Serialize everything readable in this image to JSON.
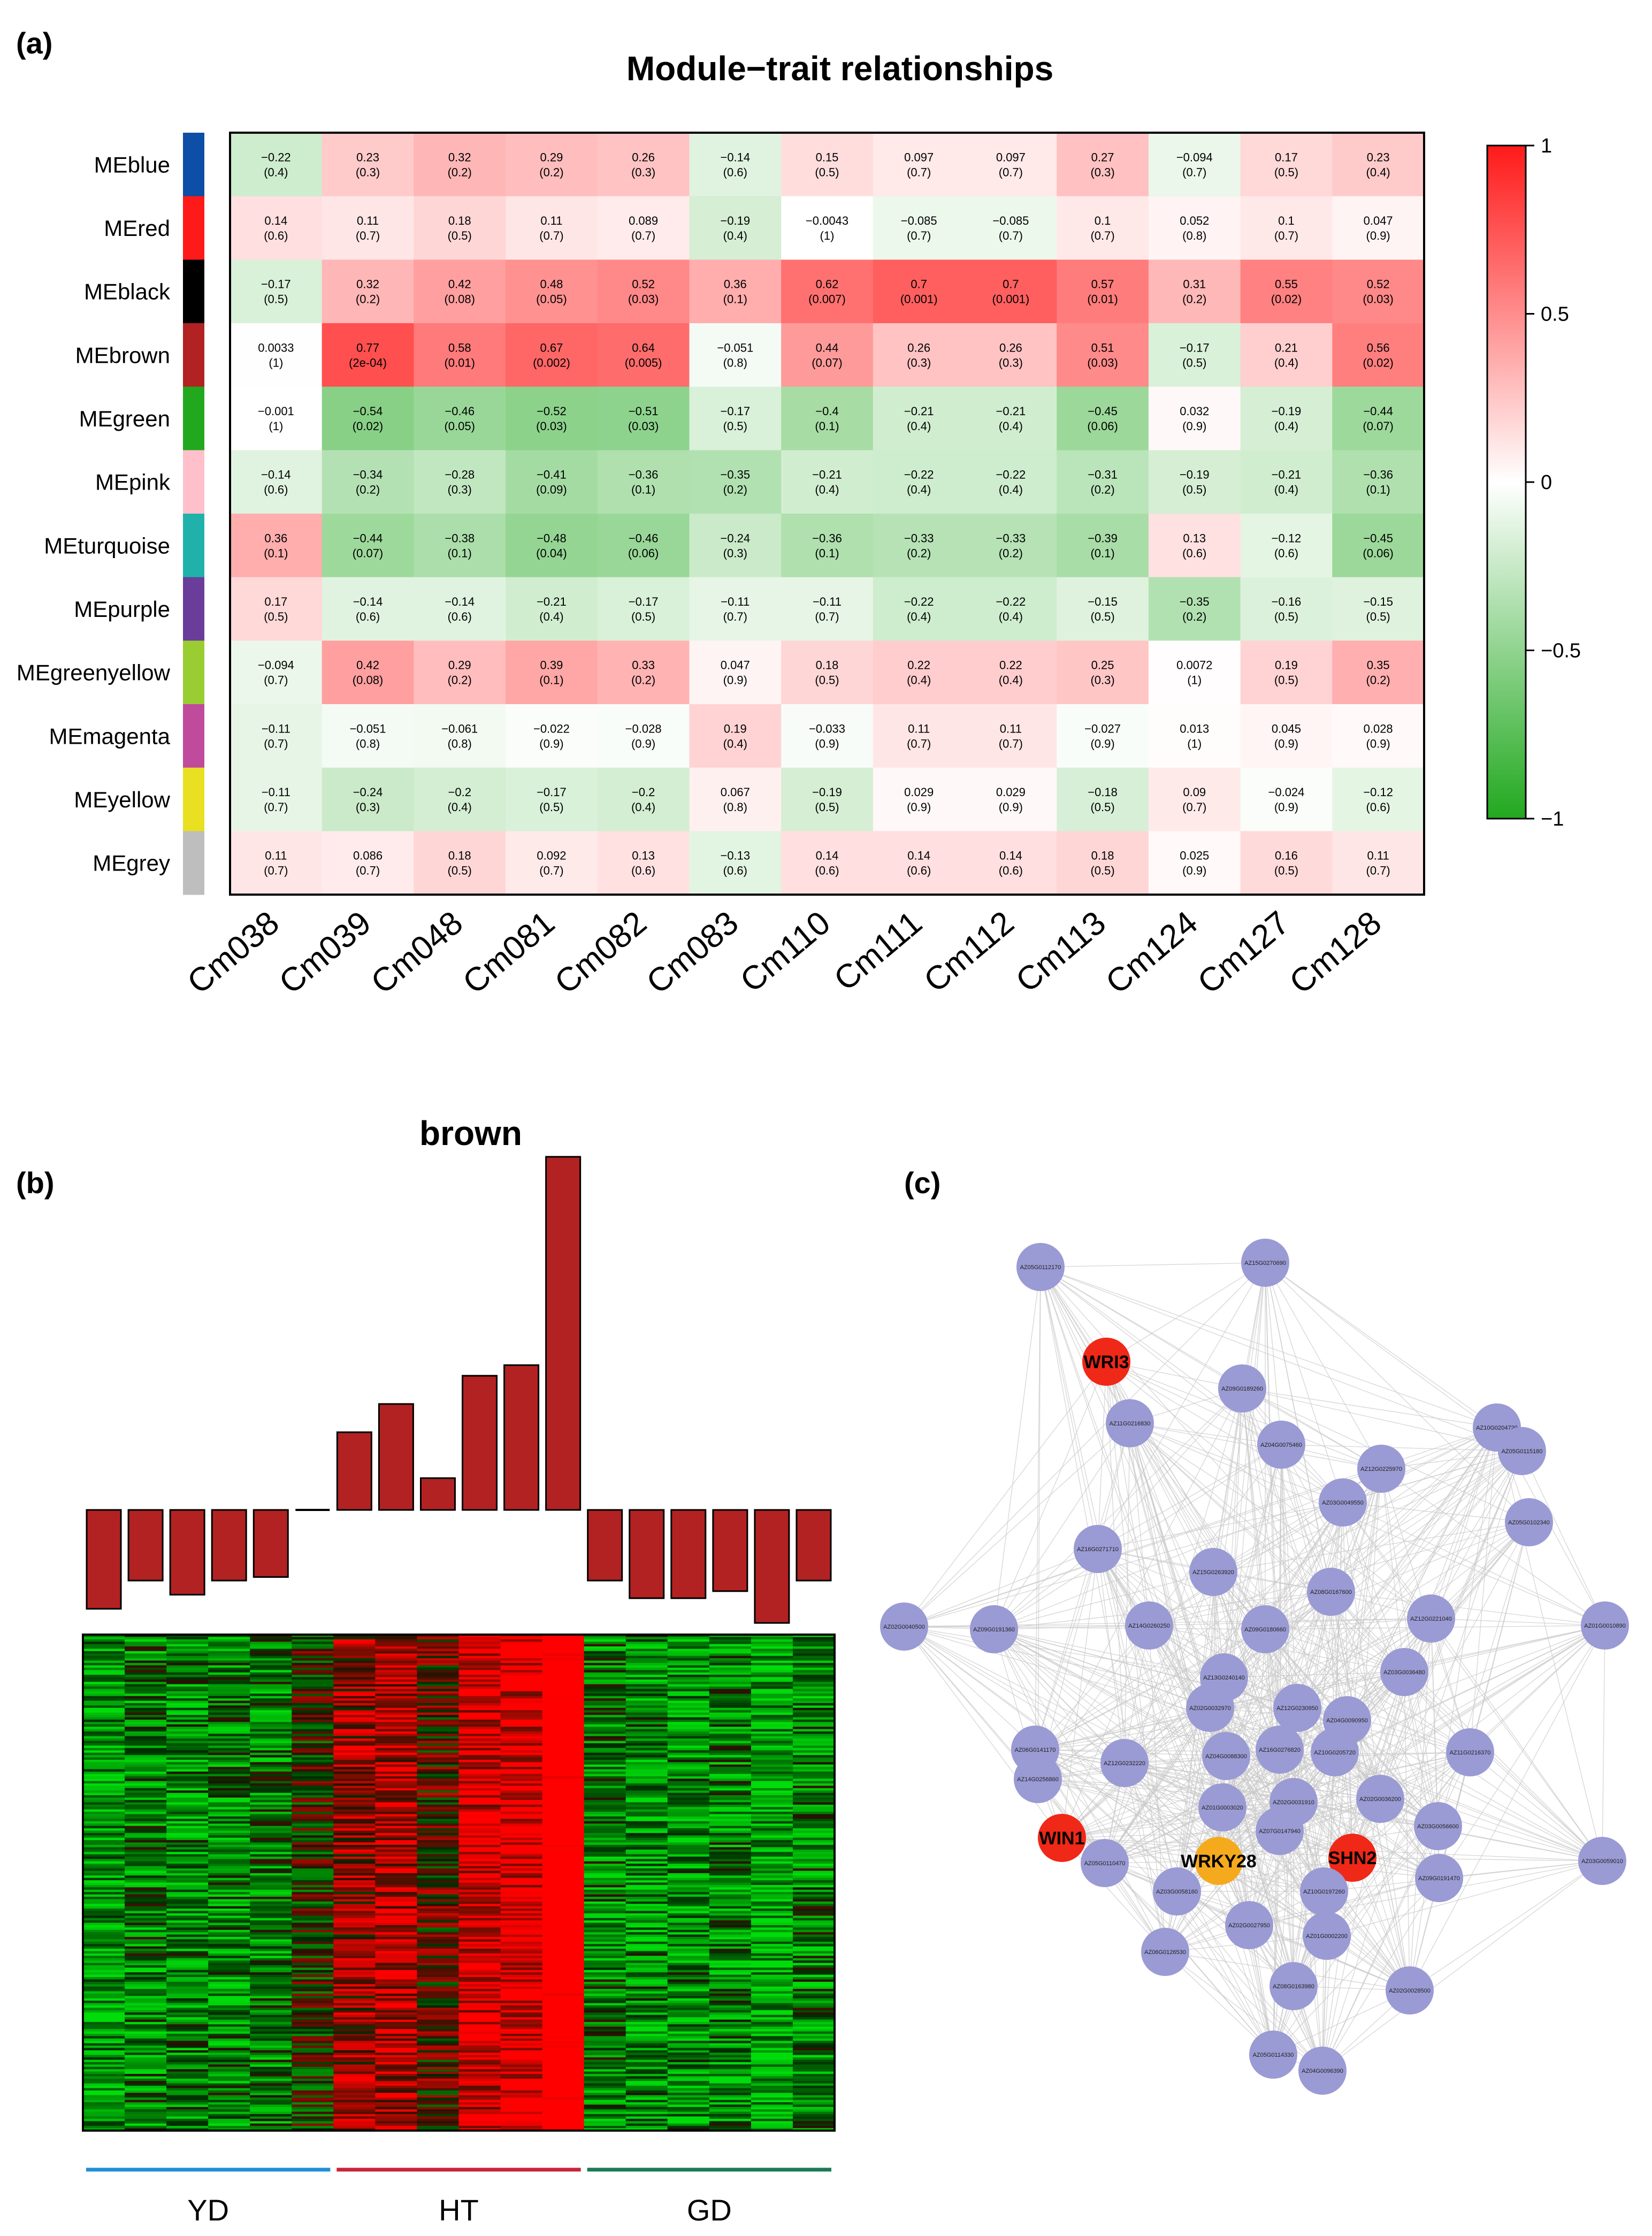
{
  "panel_labels": [
    "(a)",
    "(b)",
    "(c)"
  ],
  "chart_data": [
    {
      "type": "heatmap",
      "title": "Module−trait relationships",
      "rows": [
        "MEblue",
        "MEred",
        "MEblack",
        "MEbrown",
        "MEgreen",
        "MEpink",
        "MEturquoise",
        "MEpurple",
        "MEgreenyellow",
        "MEmagenta",
        "MEyellow",
        "MEgrey"
      ],
      "row_colors": [
        "#0d4ea6",
        "#ff1a1a",
        "#000000",
        "#b22222",
        "#22a81f",
        "#ffc0cb",
        "#20b2aa",
        "#6a3d9a",
        "#9acd32",
        "#c04b9c",
        "#e8e020",
        "#bebebe"
      ],
      "columns": [
        "Cm038",
        "Cm039",
        "Cm048",
        "Cm081",
        "Cm082",
        "Cm083",
        "Cm110",
        "Cm111",
        "Cm112",
        "Cm113",
        "Cm124",
        "Cm127",
        "Cm128"
      ],
      "values": [
        [
          -0.22,
          0.23,
          0.32,
          0.29,
          0.26,
          -0.14,
          0.15,
          0.097,
          0.097,
          0.27,
          -0.094,
          0.17,
          0.23
        ],
        [
          0.14,
          0.11,
          0.18,
          0.11,
          0.089,
          -0.19,
          -0.0043,
          -0.085,
          -0.085,
          0.1,
          0.052,
          0.1,
          0.047
        ],
        [
          -0.17,
          0.32,
          0.42,
          0.48,
          0.52,
          0.36,
          0.62,
          0.7,
          0.7,
          0.57,
          0.31,
          0.55,
          0.52
        ],
        [
          0.0033,
          0.77,
          0.58,
          0.67,
          0.64,
          -0.051,
          0.44,
          0.26,
          0.26,
          0.51,
          -0.17,
          0.21,
          0.56
        ],
        [
          -0.001,
          -0.54,
          -0.46,
          -0.52,
          -0.51,
          -0.17,
          -0.4,
          -0.21,
          -0.21,
          -0.45,
          0.032,
          -0.19,
          -0.44
        ],
        [
          -0.14,
          -0.34,
          -0.28,
          -0.41,
          -0.36,
          -0.35,
          -0.21,
          -0.22,
          -0.22,
          -0.31,
          -0.19,
          -0.21,
          -0.36
        ],
        [
          0.36,
          -0.44,
          -0.38,
          -0.48,
          -0.46,
          -0.24,
          -0.36,
          -0.33,
          -0.33,
          -0.39,
          0.13,
          -0.12,
          -0.45
        ],
        [
          0.17,
          -0.14,
          -0.14,
          -0.21,
          -0.17,
          -0.11,
          -0.11,
          -0.22,
          -0.22,
          -0.15,
          -0.35,
          -0.16,
          -0.15
        ],
        [
          -0.094,
          0.42,
          0.29,
          0.39,
          0.33,
          0.047,
          0.18,
          0.22,
          0.22,
          0.25,
          0.0072,
          0.19,
          0.35
        ],
        [
          -0.11,
          -0.051,
          -0.061,
          -0.022,
          -0.028,
          0.19,
          -0.033,
          0.11,
          0.11,
          -0.027,
          0.013,
          0.045,
          0.028
        ],
        [
          -0.11,
          -0.24,
          -0.2,
          -0.17,
          -0.2,
          0.067,
          -0.19,
          0.029,
          0.029,
          -0.18,
          0.09,
          -0.024,
          -0.12
        ],
        [
          0.11,
          0.086,
          0.18,
          0.092,
          0.13,
          -0.13,
          0.14,
          0.14,
          0.14,
          0.18,
          0.025,
          0.16,
          0.11
        ]
      ],
      "pvalues": [
        [
          "(0.4)",
          "(0.3)",
          "(0.2)",
          "(0.2)",
          "(0.3)",
          "(0.6)",
          "(0.5)",
          "(0.7)",
          "(0.7)",
          "(0.3)",
          "(0.7)",
          "(0.5)",
          "(0.4)"
        ],
        [
          "(0.6)",
          "(0.7)",
          "(0.5)",
          "(0.7)",
          "(0.7)",
          "(0.4)",
          "(1)",
          "(0.7)",
          "(0.7)",
          "(0.7)",
          "(0.8)",
          "(0.7)",
          "(0.9)"
        ],
        [
          "(0.5)",
          "(0.2)",
          "(0.08)",
          "(0.05)",
          "(0.03)",
          "(0.1)",
          "(0.007)",
          "(0.001)",
          "(0.001)",
          "(0.01)",
          "(0.2)",
          "(0.02)",
          "(0.03)"
        ],
        [
          "(1)",
          "(2e-04)",
          "(0.01)",
          "(0.002)",
          "(0.005)",
          "(0.8)",
          "(0.07)",
          "(0.3)",
          "(0.3)",
          "(0.03)",
          "(0.5)",
          "(0.4)",
          "(0.02)"
        ],
        [
          "(1)",
          "(0.02)",
          "(0.05)",
          "(0.03)",
          "(0.03)",
          "(0.5)",
          "(0.1)",
          "(0.4)",
          "(0.4)",
          "(0.06)",
          "(0.9)",
          "(0.4)",
          "(0.07)"
        ],
        [
          "(0.6)",
          "(0.2)",
          "(0.3)",
          "(0.09)",
          "(0.1)",
          "(0.2)",
          "(0.4)",
          "(0.4)",
          "(0.4)",
          "(0.2)",
          "(0.5)",
          "(0.4)",
          "(0.1)"
        ],
        [
          "(0.1)",
          "(0.07)",
          "(0.1)",
          "(0.04)",
          "(0.06)",
          "(0.3)",
          "(0.1)",
          "(0.2)",
          "(0.2)",
          "(0.1)",
          "(0.6)",
          "(0.6)",
          "(0.06)"
        ],
        [
          "(0.5)",
          "(0.6)",
          "(0.6)",
          "(0.4)",
          "(0.5)",
          "(0.7)",
          "(0.7)",
          "(0.4)",
          "(0.4)",
          "(0.5)",
          "(0.2)",
          "(0.5)",
          "(0.5)"
        ],
        [
          "(0.7)",
          "(0.08)",
          "(0.2)",
          "(0.1)",
          "(0.2)",
          "(0.9)",
          "(0.5)",
          "(0.4)",
          "(0.4)",
          "(0.3)",
          "(1)",
          "(0.5)",
          "(0.2)"
        ],
        [
          "(0.7)",
          "(0.8)",
          "(0.8)",
          "(0.9)",
          "(0.9)",
          "(0.4)",
          "(0.9)",
          "(0.7)",
          "(0.7)",
          "(0.9)",
          "(1)",
          "(0.9)",
          "(0.9)"
        ],
        [
          "(0.7)",
          "(0.3)",
          "(0.4)",
          "(0.5)",
          "(0.4)",
          "(0.8)",
          "(0.5)",
          "(0.9)",
          "(0.9)",
          "(0.5)",
          "(0.7)",
          "(0.9)",
          "(0.6)"
        ],
        [
          "(0.7)",
          "(0.7)",
          "(0.5)",
          "(0.7)",
          "(0.6)",
          "(0.6)",
          "(0.6)",
          "(0.6)",
          "(0.6)",
          "(0.5)",
          "(0.9)",
          "(0.5)",
          "(0.7)"
        ]
      ],
      "value_labels": [
        [
          "−0.22",
          "0.23",
          "0.32",
          "0.29",
          "0.26",
          "−0.14",
          "0.15",
          "0.097",
          "0.097",
          "0.27",
          "−0.094",
          "0.17",
          "0.23"
        ],
        [
          "0.14",
          "0.11",
          "0.18",
          "0.11",
          "0.089",
          "−0.19",
          "−0.0043",
          "−0.085",
          "−0.085",
          "0.1",
          "0.052",
          "0.1",
          "0.047"
        ],
        [
          "−0.17",
          "0.32",
          "0.42",
          "0.48",
          "0.52",
          "0.36",
          "0.62",
          "0.7",
          "0.7",
          "0.57",
          "0.31",
          "0.55",
          "0.52"
        ],
        [
          "0.0033",
          "0.77",
          "0.58",
          "0.67",
          "0.64",
          "−0.051",
          "0.44",
          "0.26",
          "0.26",
          "0.51",
          "−0.17",
          "0.21",
          "0.56"
        ],
        [
          "−0.001",
          "−0.54",
          "−0.46",
          "−0.52",
          "−0.51",
          "−0.17",
          "−0.4",
          "−0.21",
          "−0.21",
          "−0.45",
          "0.032",
          "−0.19",
          "−0.44"
        ],
        [
          "−0.14",
          "−0.34",
          "−0.28",
          "−0.41",
          "−0.36",
          "−0.35",
          "−0.21",
          "−0.22",
          "−0.22",
          "−0.31",
          "−0.19",
          "−0.21",
          "−0.36"
        ],
        [
          "0.36",
          "−0.44",
          "−0.38",
          "−0.48",
          "−0.46",
          "−0.24",
          "−0.36",
          "−0.33",
          "−0.33",
          "−0.39",
          "0.13",
          "−0.12",
          "−0.45"
        ],
        [
          "0.17",
          "−0.14",
          "−0.14",
          "−0.21",
          "−0.17",
          "−0.11",
          "−0.11",
          "−0.22",
          "−0.22",
          "−0.15",
          "−0.35",
          "−0.16",
          "−0.15"
        ],
        [
          "−0.094",
          "0.42",
          "0.29",
          "0.39",
          "0.33",
          "0.047",
          "0.18",
          "0.22",
          "0.22",
          "0.25",
          "0.0072",
          "0.19",
          "0.35"
        ],
        [
          "−0.11",
          "−0.051",
          "−0.061",
          "−0.022",
          "−0.028",
          "0.19",
          "−0.033",
          "0.11",
          "0.11",
          "−0.027",
          "0.013",
          "0.045",
          "0.028"
        ],
        [
          "−0.11",
          "−0.24",
          "−0.2",
          "−0.17",
          "−0.2",
          "0.067",
          "−0.19",
          "0.029",
          "0.029",
          "−0.18",
          "0.09",
          "−0.024",
          "−0.12"
        ],
        [
          "0.11",
          "0.086",
          "0.18",
          "0.092",
          "0.13",
          "−0.13",
          "0.14",
          "0.14",
          "0.14",
          "0.18",
          "0.025",
          "0.16",
          "0.11"
        ]
      ],
      "colorbar": {
        "range": [
          -1,
          1
        ],
        "ticks": [
          "1",
          "0.5",
          "0",
          "−0.5",
          "−1"
        ],
        "low_color": "#22a81f",
        "mid_color": "#ffffff",
        "high_color": "#ff1a1a"
      }
    },
    {
      "type": "bar",
      "title": "brown",
      "values": [
        -0.28,
        -0.2,
        -0.24,
        -0.2,
        -0.19,
        0.0,
        0.22,
        0.3,
        0.09,
        0.38,
        0.41,
        1.0,
        -0.2,
        -0.25,
        -0.25,
        -0.23,
        -0.32,
        -0.2
      ],
      "bar_color": "#b22222",
      "heatmap_groups": [
        "YD",
        "HT",
        "GD"
      ],
      "group_colors": [
        "#1e90d6",
        "#c8243c",
        "#1a7a55"
      ],
      "samples_per_group": 6
    },
    {
      "type": "network",
      "nodes": [
        {
          "id": "AZ05G0112170",
          "kind": "gene"
        },
        {
          "id": "AZ15G0270690",
          "kind": "gene"
        },
        {
          "id": "WRI3",
          "kind": "highlight-red"
        },
        {
          "id": "AZ09G0189260",
          "kind": "gene"
        },
        {
          "id": "AZ11G0216830",
          "kind": "gene"
        },
        {
          "id": "AZ04G0075460",
          "kind": "gene"
        },
        {
          "id": "AZ10G0204720",
          "kind": "gene"
        },
        {
          "id": "AZ05G0115180",
          "kind": "gene"
        },
        {
          "id": "AZ12G0225970",
          "kind": "gene"
        },
        {
          "id": "AZ03G0049550",
          "kind": "gene"
        },
        {
          "id": "AZ05G0102340",
          "kind": "gene"
        },
        {
          "id": "AZ16G0271710",
          "kind": "gene"
        },
        {
          "id": "AZ15G0263920",
          "kind": "gene"
        },
        {
          "id": "AZ08G0167600",
          "kind": "gene"
        },
        {
          "id": "AZ02G0040500",
          "kind": "gene"
        },
        {
          "id": "AZ09G0191360",
          "kind": "gene"
        },
        {
          "id": "AZ14G0260250",
          "kind": "gene"
        },
        {
          "id": "AZ09G0180660",
          "kind": "gene"
        },
        {
          "id": "AZ12G0221040",
          "kind": "gene"
        },
        {
          "id": "AZ01G0010890",
          "kind": "gene"
        },
        {
          "id": "AZ13G0240140",
          "kind": "gene"
        },
        {
          "id": "AZ03G0036480",
          "kind": "gene"
        },
        {
          "id": "AZ02G0032970",
          "kind": "gene"
        },
        {
          "id": "AZ12G0230950",
          "kind": "gene"
        },
        {
          "id": "AZ04G0090950",
          "kind": "gene"
        },
        {
          "id": "AZ06G0141170",
          "kind": "gene"
        },
        {
          "id": "AZ12G0232220",
          "kind": "gene"
        },
        {
          "id": "AZ04G0088300",
          "kind": "gene"
        },
        {
          "id": "AZ16G0276820",
          "kind": "gene"
        },
        {
          "id": "AZ10G0205720",
          "kind": "gene"
        },
        {
          "id": "AZ11G0216370",
          "kind": "gene"
        },
        {
          "id": "AZ14G0256860",
          "kind": "gene"
        },
        {
          "id": "AZ01G0003020",
          "kind": "gene"
        },
        {
          "id": "AZ02G0031910",
          "kind": "gene"
        },
        {
          "id": "AZ02G0036200",
          "kind": "gene"
        },
        {
          "id": "WIN1",
          "kind": "highlight-red"
        },
        {
          "id": "AZ07G0147940",
          "kind": "gene"
        },
        {
          "id": "AZ03G0056600",
          "kind": "gene"
        },
        {
          "id": "WRKY28",
          "kind": "highlight-orange"
        },
        {
          "id": "SHN2",
          "kind": "highlight-red"
        },
        {
          "id": "AZ03G0059010",
          "kind": "gene"
        },
        {
          "id": "AZ05G0110470",
          "kind": "gene"
        },
        {
          "id": "AZ03G0058160",
          "kind": "gene"
        },
        {
          "id": "AZ10G0197260",
          "kind": "gene"
        },
        {
          "id": "AZ09G0191470",
          "kind": "gene"
        },
        {
          "id": "AZ02G0027950",
          "kind": "gene"
        },
        {
          "id": "AZ01G0002200",
          "kind": "gene"
        },
        {
          "id": "AZ06G0126530",
          "kind": "gene"
        },
        {
          "id": "AZ08G0163980",
          "kind": "gene"
        },
        {
          "id": "AZ02G0028500",
          "kind": "gene"
        },
        {
          "id": "AZ05G0114330",
          "kind": "gene"
        },
        {
          "id": "AZ04G0096390",
          "kind": "gene"
        }
      ],
      "colors": {
        "gene": "#9a9ad4",
        "highlight-red": "#f02818",
        "highlight-orange": "#f5aa1e",
        "edge": "#c8c8c8"
      }
    }
  ]
}
